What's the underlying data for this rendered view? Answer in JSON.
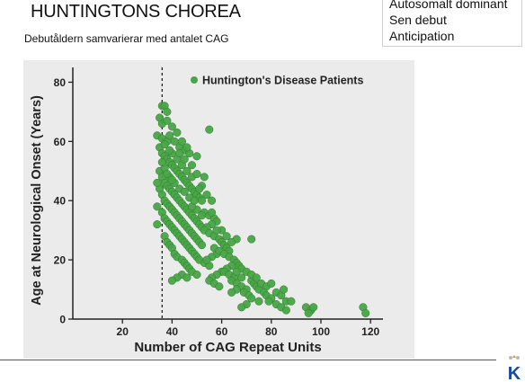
{
  "slide": {
    "title": "HUNTINGTONS CHOREA",
    "subtitle": "Debutåldern samvarierar med antalet CAG",
    "bullets": [
      "Autosomalt dominant",
      "Sen debut",
      "Anticipation"
    ]
  },
  "logo": {
    "letter": "K",
    "accent": "#1a4a9c"
  },
  "chart_data": {
    "type": "scatter",
    "title": "",
    "xlabel": "Number of CAG Repeat Units",
    "ylabel": "Age at Neurological Onset (Years)",
    "xlim": [
      0,
      125
    ],
    "ylim": [
      0,
      85
    ],
    "xticks": [
      20,
      40,
      60,
      80,
      100,
      120
    ],
    "yticks": [
      0,
      20,
      40,
      60,
      80
    ],
    "threshold_x": 36,
    "grid": false,
    "legend_position": "top-right",
    "colors": {
      "points": "#49a547",
      "point_outline": "#2f7d2e",
      "background": "#ebebeb",
      "threshold": "#222222"
    },
    "series": [
      {
        "name": "Huntington's Disease Patients",
        "points": [
          [
            36,
            72
          ],
          [
            37,
            72
          ],
          [
            38,
            70
          ],
          [
            35,
            68
          ],
          [
            36,
            66
          ],
          [
            38,
            67
          ],
          [
            40,
            65
          ],
          [
            42,
            63
          ],
          [
            34,
            62
          ],
          [
            36,
            61
          ],
          [
            38,
            60
          ],
          [
            39,
            62
          ],
          [
            41,
            60
          ],
          [
            43,
            58
          ],
          [
            45,
            57
          ],
          [
            47,
            56
          ],
          [
            50,
            55
          ],
          [
            55,
            64
          ],
          [
            35,
            58
          ],
          [
            36,
            56
          ],
          [
            37,
            55
          ],
          [
            38,
            54
          ],
          [
            39,
            53
          ],
          [
            40,
            52
          ],
          [
            41,
            51
          ],
          [
            42,
            50
          ],
          [
            43,
            49
          ],
          [
            44,
            48
          ],
          [
            45,
            47
          ],
          [
            46,
            46
          ],
          [
            47,
            45
          ],
          [
            48,
            44
          ],
          [
            49,
            43
          ],
          [
            50,
            42
          ],
          [
            51,
            41
          ],
          [
            52,
            40
          ],
          [
            35,
            50
          ],
          [
            36,
            48
          ],
          [
            37,
            46
          ],
          [
            38,
            45
          ],
          [
            39,
            44
          ],
          [
            40,
            43
          ],
          [
            41,
            42
          ],
          [
            42,
            41
          ],
          [
            43,
            40
          ],
          [
            44,
            39
          ],
          [
            45,
            38
          ],
          [
            46,
            37
          ],
          [
            47,
            36
          ],
          [
            48,
            35
          ],
          [
            49,
            34
          ],
          [
            50,
            33
          ],
          [
            51,
            32
          ],
          [
            52,
            31
          ],
          [
            35,
            44
          ],
          [
            36,
            42
          ],
          [
            37,
            40
          ],
          [
            38,
            39
          ],
          [
            39,
            38
          ],
          [
            40,
            37
          ],
          [
            41,
            36
          ],
          [
            42,
            35
          ],
          [
            43,
            34
          ],
          [
            44,
            33
          ],
          [
            45,
            32
          ],
          [
            46,
            31
          ],
          [
            47,
            30
          ],
          [
            48,
            29
          ],
          [
            49,
            28
          ],
          [
            50,
            27
          ],
          [
            51,
            26
          ],
          [
            52,
            25
          ],
          [
            36,
            36
          ],
          [
            37,
            34
          ],
          [
            38,
            33
          ],
          [
            39,
            32
          ],
          [
            40,
            31
          ],
          [
            41,
            30
          ],
          [
            42,
            29
          ],
          [
            43,
            28
          ],
          [
            44,
            27
          ],
          [
            45,
            26
          ],
          [
            46,
            25
          ],
          [
            47,
            24
          ],
          [
            48,
            23
          ],
          [
            49,
            22
          ],
          [
            50,
            21
          ],
          [
            51,
            20
          ],
          [
            53,
            19
          ],
          [
            55,
            18
          ],
          [
            37,
            28
          ],
          [
            38,
            26
          ],
          [
            39,
            25
          ],
          [
            40,
            24
          ],
          [
            41,
            22
          ],
          [
            42,
            21
          ],
          [
            44,
            20
          ],
          [
            45,
            19
          ],
          [
            46,
            18
          ],
          [
            47,
            17
          ],
          [
            48,
            16
          ],
          [
            44,
            15
          ],
          [
            42,
            14
          ],
          [
            40,
            13
          ],
          [
            46,
            14
          ],
          [
            50,
            15
          ],
          [
            53,
            36
          ],
          [
            55,
            35
          ],
          [
            57,
            34
          ],
          [
            58,
            33
          ],
          [
            56,
            32
          ],
          [
            54,
            31
          ],
          [
            53,
            30
          ],
          [
            55,
            29
          ],
          [
            57,
            28
          ],
          [
            59,
            27
          ],
          [
            60,
            26
          ],
          [
            61,
            25
          ],
          [
            62,
            24
          ],
          [
            63,
            23
          ],
          [
            58,
            22
          ],
          [
            56,
            21
          ],
          [
            54,
            20
          ],
          [
            57,
            24
          ],
          [
            59,
            23
          ],
          [
            61,
            22
          ],
          [
            63,
            21
          ],
          [
            65,
            20
          ],
          [
            66,
            19
          ],
          [
            64,
            18
          ],
          [
            62,
            17
          ],
          [
            60,
            16
          ],
          [
            58,
            15
          ],
          [
            56,
            14
          ],
          [
            55,
            13
          ],
          [
            57,
            12
          ],
          [
            59,
            11
          ],
          [
            61,
            16
          ],
          [
            63,
            15
          ],
          [
            65,
            14
          ],
          [
            67,
            18
          ],
          [
            68,
            17
          ],
          [
            66,
            16
          ],
          [
            64,
            13
          ],
          [
            66,
            12
          ],
          [
            68,
            11
          ],
          [
            70,
            10
          ],
          [
            72,
            13
          ],
          [
            69,
            9
          ],
          [
            71,
            8
          ],
          [
            73,
            12
          ],
          [
            74,
            11
          ],
          [
            75,
            10
          ],
          [
            76,
            12
          ],
          [
            78,
            11
          ],
          [
            80,
            12
          ],
          [
            77,
            9
          ],
          [
            70,
            16
          ],
          [
            72,
            15
          ],
          [
            74,
            14
          ],
          [
            68,
            14
          ],
          [
            66,
            10
          ],
          [
            64,
            9
          ],
          [
            72,
            27
          ],
          [
            66,
            27
          ],
          [
            60,
            30
          ],
          [
            62,
            28
          ],
          [
            64,
            26
          ],
          [
            58,
            30
          ],
          [
            56,
            36
          ],
          [
            52,
            35
          ],
          [
            50,
            37
          ],
          [
            48,
            38
          ],
          [
            78,
            8
          ],
          [
            80,
            7
          ],
          [
            82,
            9
          ],
          [
            84,
            8
          ],
          [
            86,
            6
          ],
          [
            85,
            10
          ],
          [
            82,
            5
          ],
          [
            79,
            6
          ],
          [
            75,
            6
          ],
          [
            72,
            7
          ],
          [
            70,
            5
          ],
          [
            68,
            4
          ],
          [
            84,
            4
          ],
          [
            86,
            3
          ],
          [
            88,
            6
          ],
          [
            94,
            4
          ],
          [
            96,
            3
          ],
          [
            97,
            4
          ],
          [
            95,
            2
          ],
          [
            117,
            4
          ],
          [
            118,
            2
          ],
          [
            40,
            56
          ],
          [
            42,
            54
          ],
          [
            44,
            52
          ],
          [
            46,
            50
          ],
          [
            48,
            48
          ],
          [
            39,
            48
          ],
          [
            41,
            46
          ],
          [
            43,
            44
          ],
          [
            45,
            43
          ],
          [
            47,
            41
          ],
          [
            49,
            40
          ],
          [
            37,
            51
          ],
          [
            38,
            49
          ],
          [
            40,
            47
          ],
          [
            36,
            53
          ],
          [
            34,
            46
          ],
          [
            34,
            38
          ],
          [
            34,
            32
          ],
          [
            44,
            60
          ],
          [
            46,
            58
          ],
          [
            48,
            52
          ],
          [
            50,
            49
          ],
          [
            52,
            45
          ],
          [
            54,
            42
          ],
          [
            56,
            40
          ],
          [
            53,
            48
          ],
          [
            51,
            44
          ],
          [
            45,
            54
          ],
          [
            43,
            56
          ],
          [
            39,
            57
          ],
          [
            37,
            59
          ]
        ]
      }
    ]
  }
}
